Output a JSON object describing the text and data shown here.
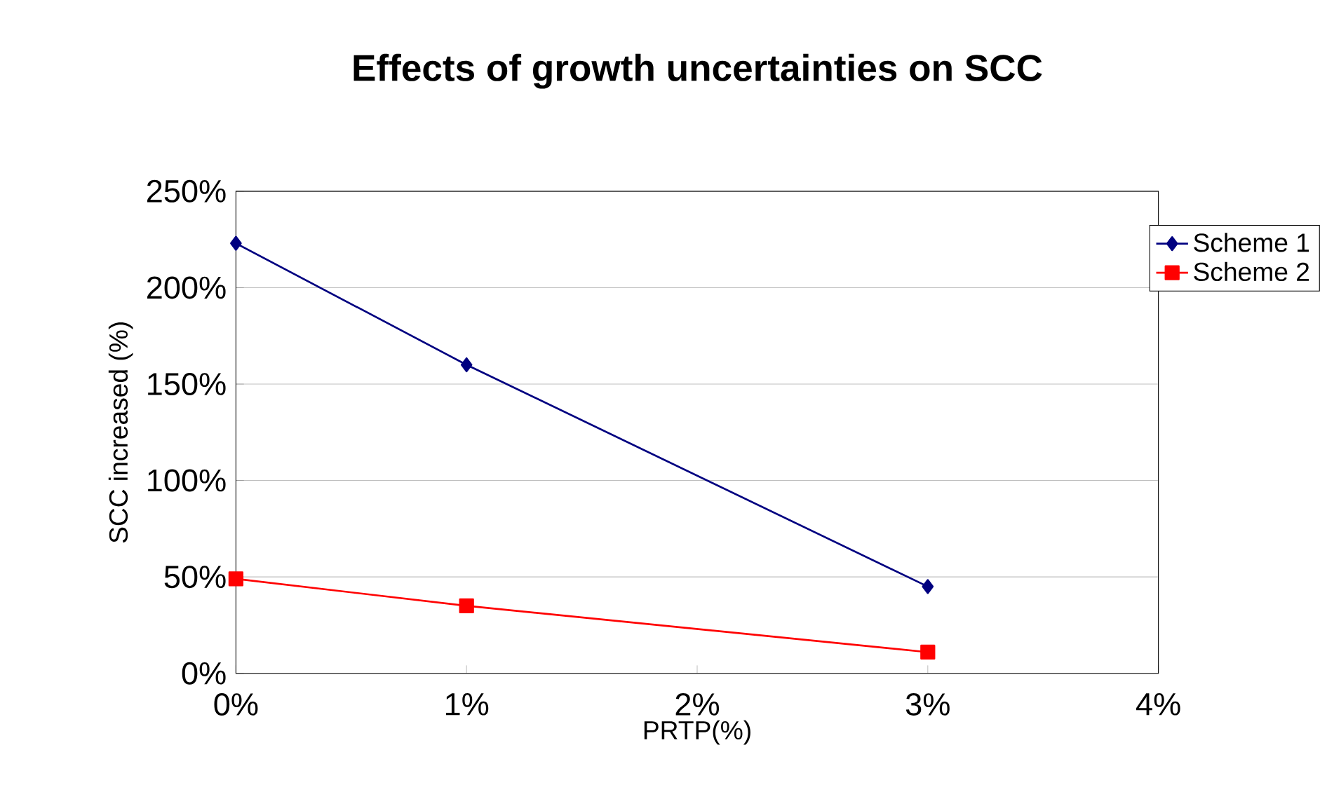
{
  "chart_data": {
    "type": "line",
    "title": "Effects of growth uncertainties on SCC",
    "xlabel": "PRTP(%)",
    "ylabel": "SCC increased (%)",
    "x": [
      0,
      1,
      3
    ],
    "series": [
      {
        "name": "Scheme 1",
        "color": "#000080",
        "marker": "diamond",
        "values": [
          223,
          160,
          45
        ]
      },
      {
        "name": "Scheme 2",
        "color": "#ff0000",
        "marker": "square",
        "values": [
          49,
          35,
          11
        ]
      }
    ],
    "xlim": [
      0,
      4
    ],
    "ylim": [
      0,
      250
    ],
    "xticks": [
      {
        "value": 0,
        "label": "0%"
      },
      {
        "value": 1,
        "label": "1%"
      },
      {
        "value": 2,
        "label": "2%"
      },
      {
        "value": 3,
        "label": "3%"
      },
      {
        "value": 4,
        "label": "4%"
      }
    ],
    "yticks": [
      {
        "value": 0,
        "label": "0%"
      },
      {
        "value": 50,
        "label": "50%"
      },
      {
        "value": 100,
        "label": "100%"
      },
      {
        "value": 150,
        "label": "150%"
      },
      {
        "value": 200,
        "label": "200%"
      },
      {
        "value": 250,
        "label": "250%"
      }
    ],
    "grid": "y",
    "legend": "top right"
  }
}
